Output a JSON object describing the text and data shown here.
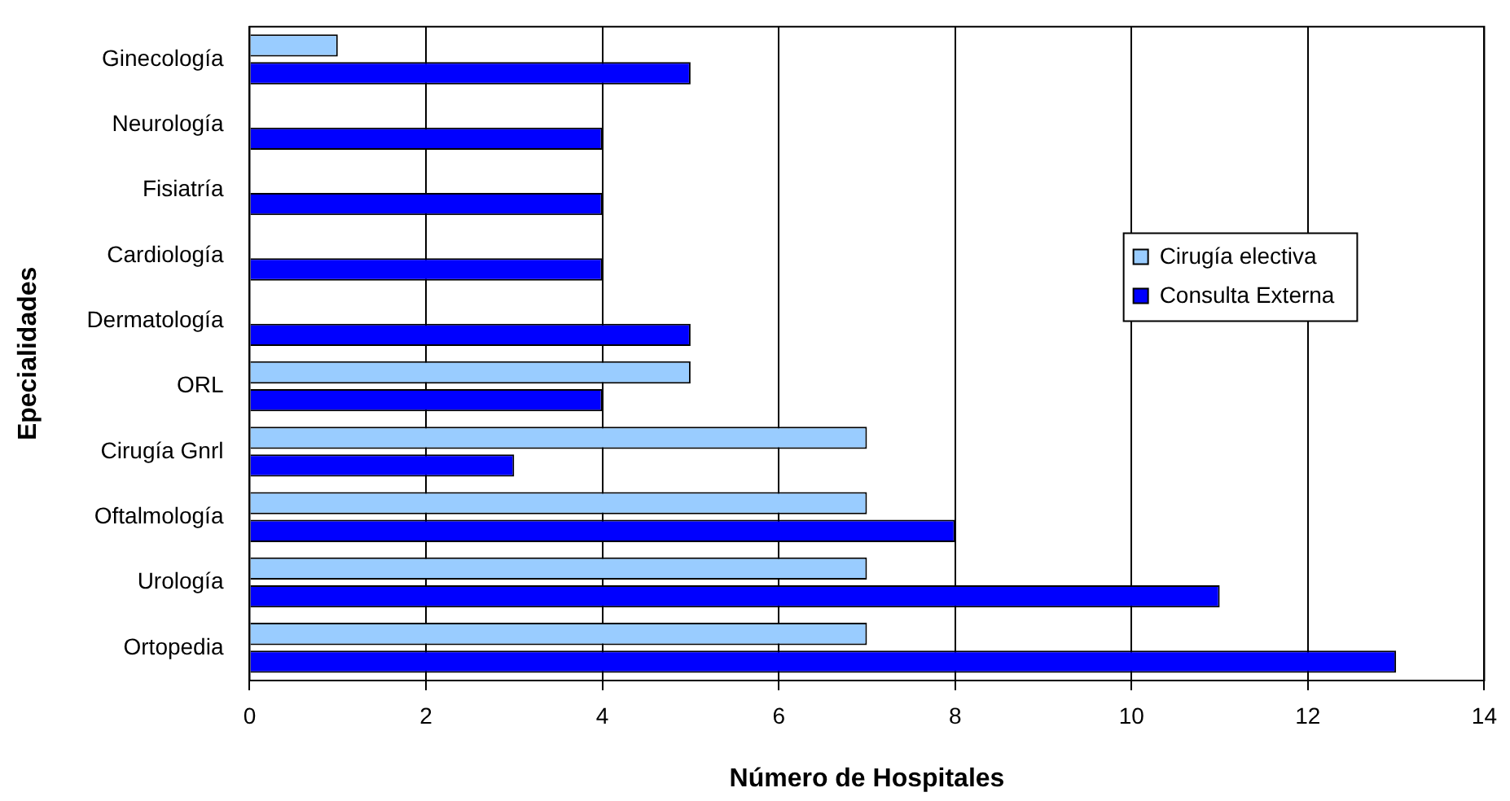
{
  "chart_data": {
    "type": "bar",
    "orientation": "horizontal",
    "xlabel": "Número de Hospitales",
    "ylabel": "Epecialidades",
    "categories": [
      "Ginecología",
      "Neurología",
      "Fisiatría",
      "Cardiología",
      "Dermatología",
      "ORL",
      "Cirugía Gnrl",
      "Oftalmología",
      "Urología",
      "Ortopedia"
    ],
    "series": [
      {
        "name": "Cirugía electiva",
        "color": "#99ccff",
        "values": [
          1,
          0,
          0,
          0,
          0,
          5,
          7,
          7,
          7,
          7
        ]
      },
      {
        "name": "Consulta Externa",
        "color": "#0000ff",
        "values": [
          5,
          4,
          4,
          4,
          5,
          4,
          3,
          8,
          11,
          13
        ]
      }
    ],
    "xlim": [
      0,
      14
    ],
    "xticks": [
      0,
      2,
      4,
      6,
      8,
      10,
      12,
      14
    ],
    "grid": "x",
    "legend": "right"
  }
}
